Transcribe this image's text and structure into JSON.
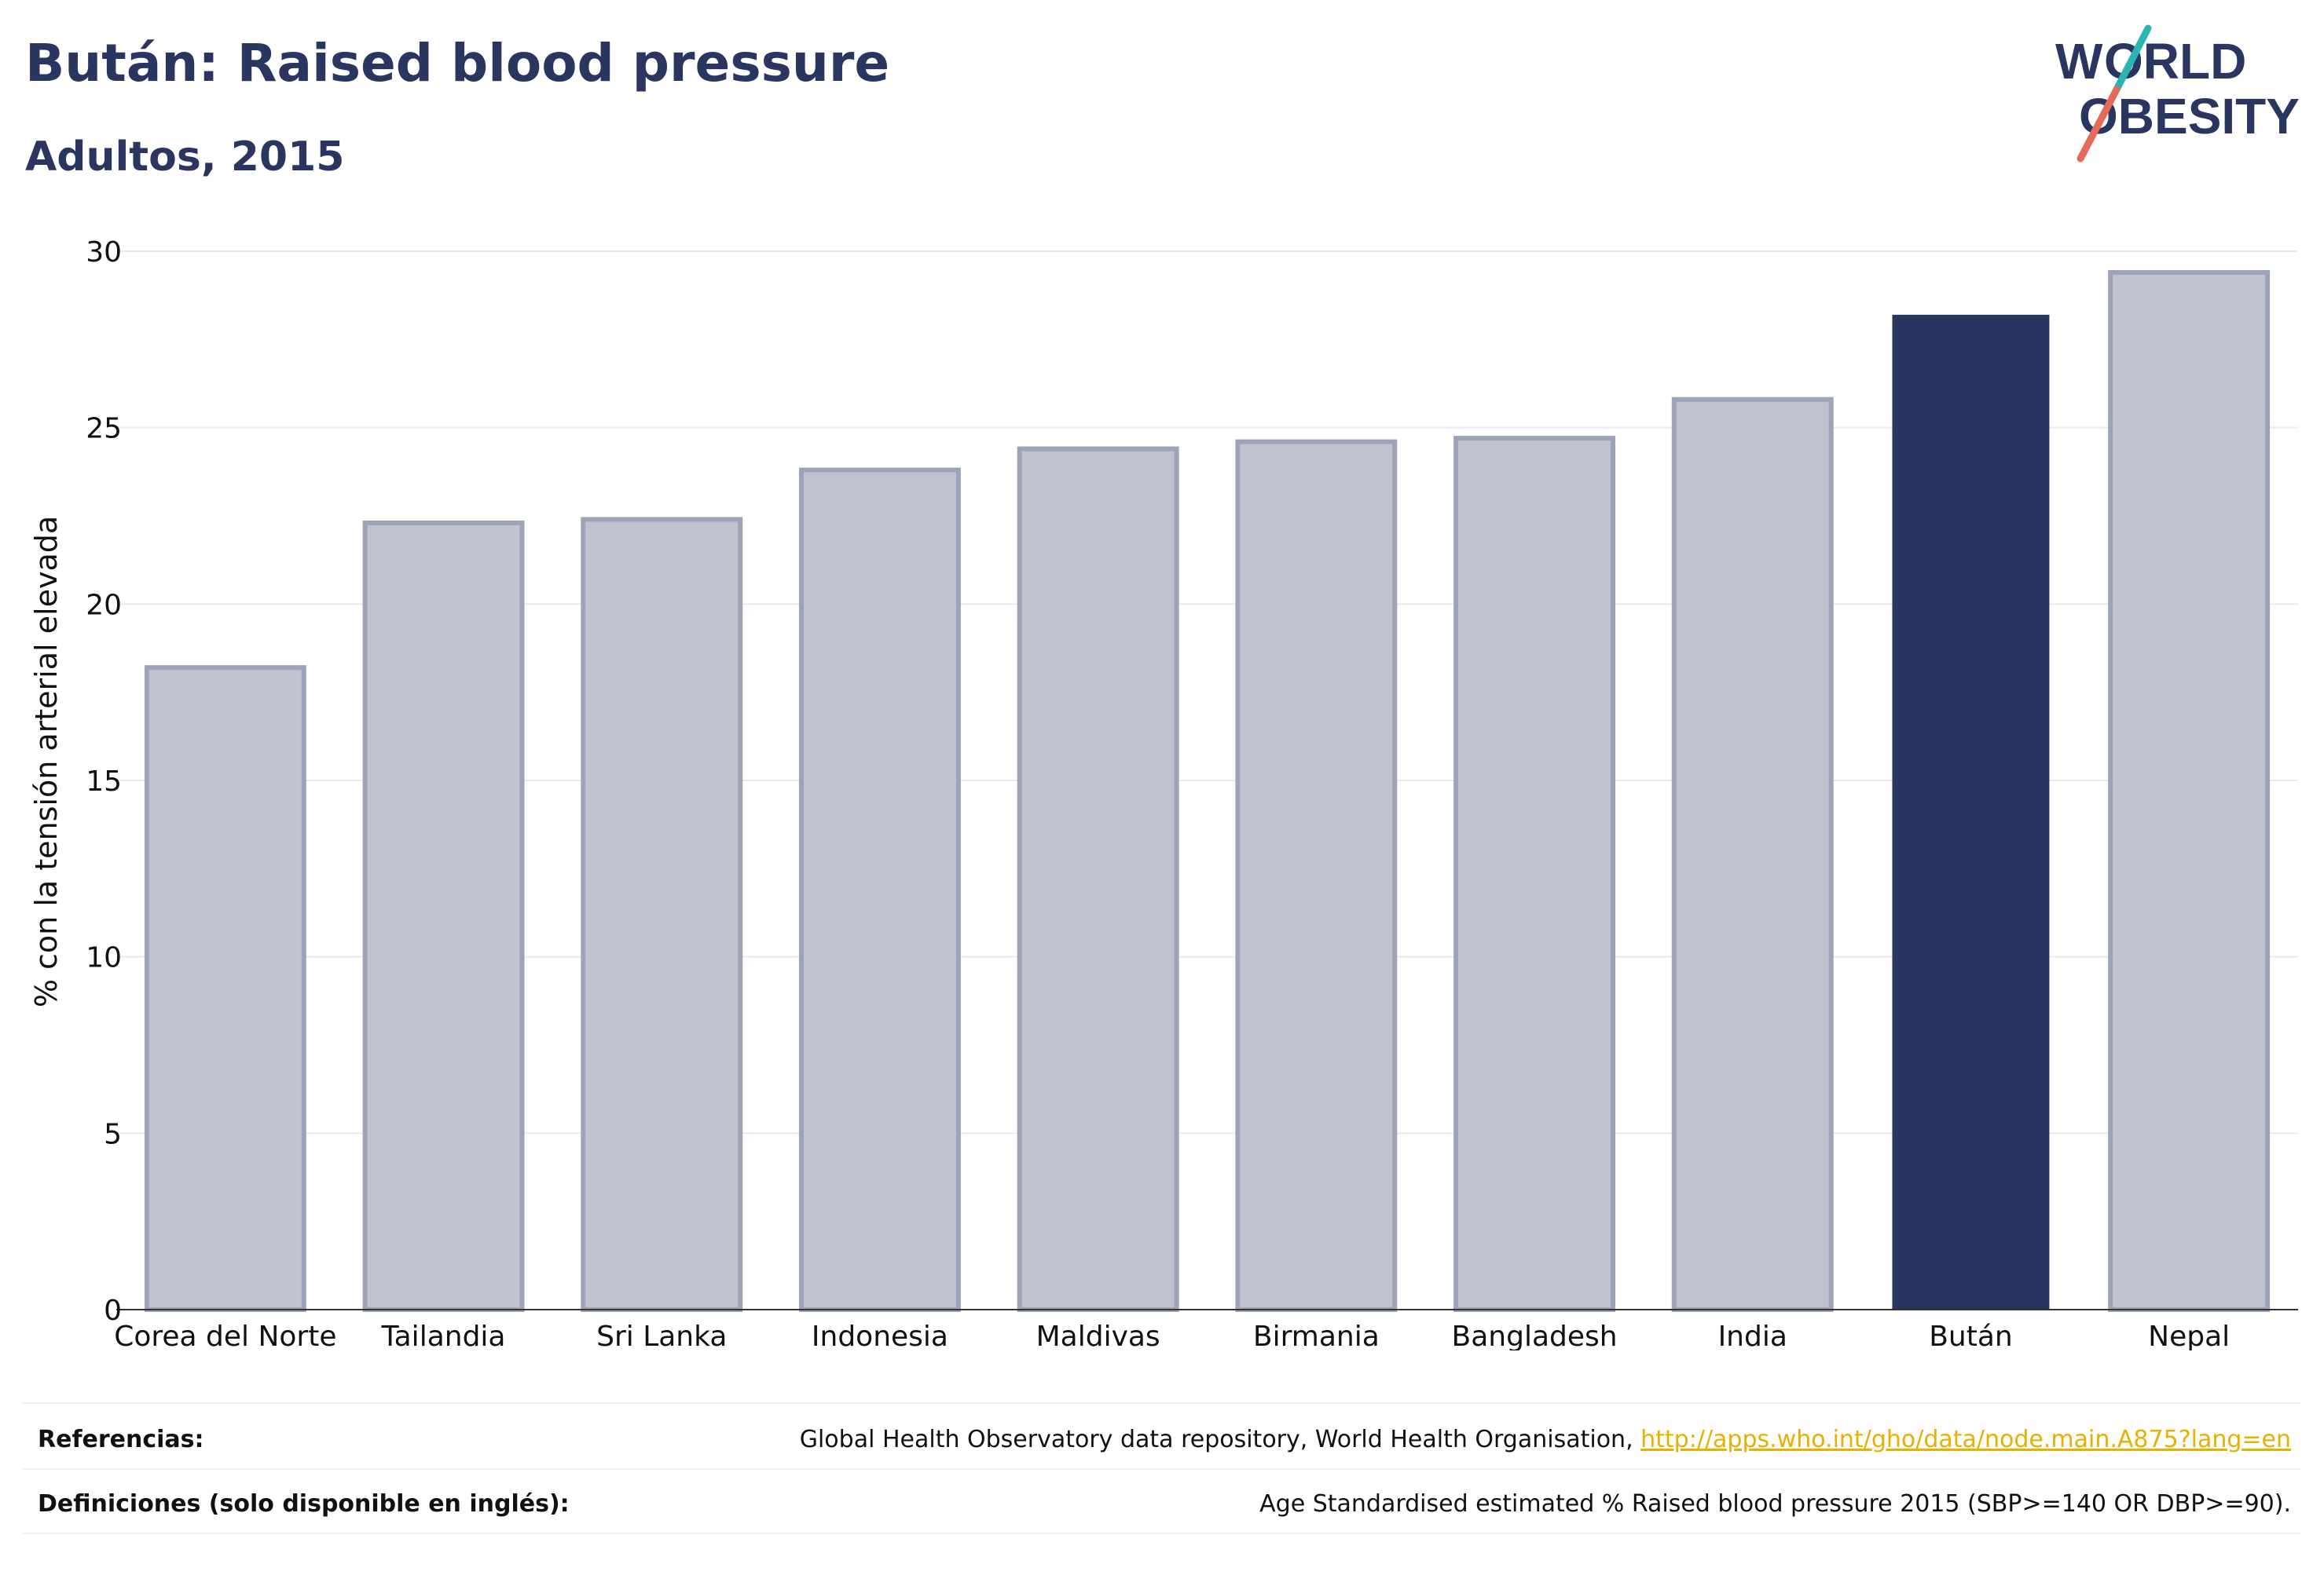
{
  "header": {
    "title": "Bután: Raised blood pressure",
    "subtitle": "Adultos, 2015"
  },
  "logo": {
    "line1": "WORLD",
    "line2": "OBESITY",
    "accent_teal": "#2bb5b0",
    "accent_coral": "#e46b5a"
  },
  "colors": {
    "highlight": "#2a3560",
    "other": "#bfc2cf",
    "other_border": "#9ea3b8",
    "grid": "#e8eaf0"
  },
  "chart_data": {
    "type": "bar",
    "ylabel": "% con la tensión arterial elevada",
    "ylim": [
      0,
      30
    ],
    "yticks": [
      "0",
      "5",
      "10",
      "15",
      "20",
      "25",
      "30"
    ],
    "categories": [
      "Corea del Norte",
      "Tailandia",
      "Sri Lanka",
      "Indonesia",
      "Maldivas",
      "Birmania",
      "Bangladesh",
      "India",
      "Bután",
      "Nepal"
    ],
    "values": [
      18.2,
      22.3,
      22.4,
      23.8,
      24.4,
      24.6,
      24.7,
      25.8,
      28.2,
      29.4
    ],
    "highlight": "Bután",
    "grid": true
  },
  "footer": {
    "references_label": "Referencias:",
    "references_text": "Global Health Observatory data repository, World Health Organisation, ",
    "references_link": "http://apps.who.int/gho/data/node.main.A875?lang=en",
    "definitions_label": "Definiciones (solo disponible en inglés):",
    "definitions_text": "Age Standardised estimated % Raised blood pressure 2015 (SBP>=140 OR DBP>=90)."
  }
}
